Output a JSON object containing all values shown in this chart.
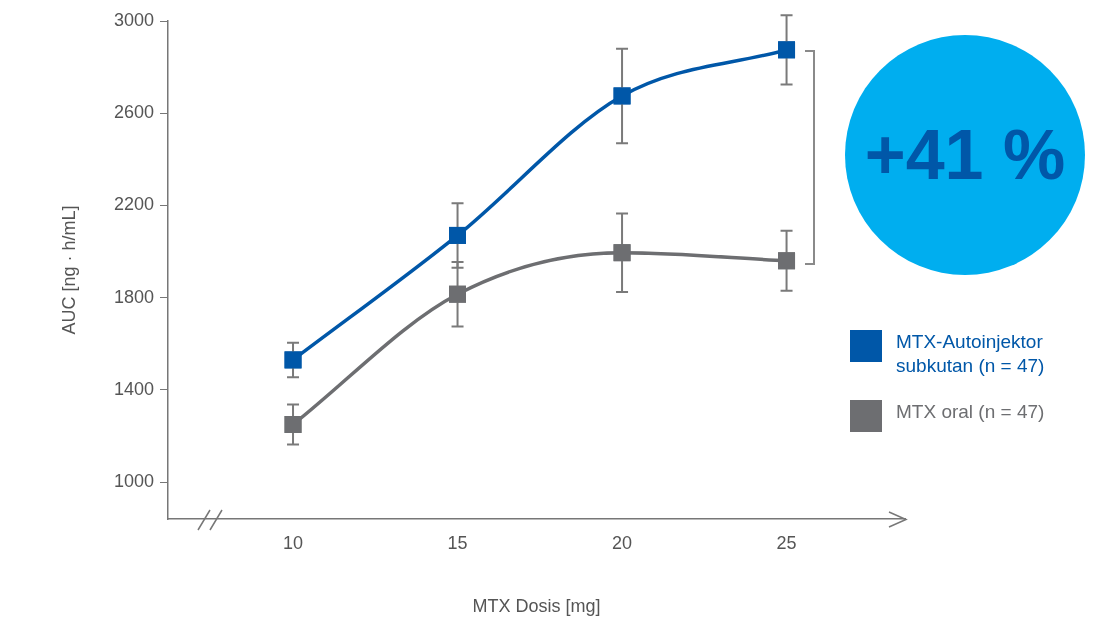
{
  "chart_data": {
    "type": "line",
    "xlabel": "MTX Dosis [mg]",
    "ylabel": "AUC [ng · h/mL]",
    "x": [
      10,
      15,
      20,
      25
    ],
    "xlim": [
      6.2,
      28.6
    ],
    "xticks": [
      10,
      15,
      20,
      25
    ],
    "ylim": [
      840,
      3000
    ],
    "yticks": [
      1000,
      1400,
      1800,
      2200,
      2600,
      3000
    ],
    "series": [
      {
        "name": "MTX-Autoinjektor subkutan (n = 47)",
        "color": "#0057a8",
        "values": [
          1530,
          2070,
          2675,
          2875
        ],
        "errors": [
          75,
          140,
          205,
          150
        ]
      },
      {
        "name": "MTX oral (n = 47)",
        "color": "#6d6e71",
        "values": [
          1250,
          1815,
          1995,
          1960
        ],
        "errors": [
          87,
          140,
          170,
          130
        ]
      }
    ],
    "marker": "square",
    "grid": false,
    "legend": "right",
    "annotations": [
      "+41 %"
    ]
  }
}
